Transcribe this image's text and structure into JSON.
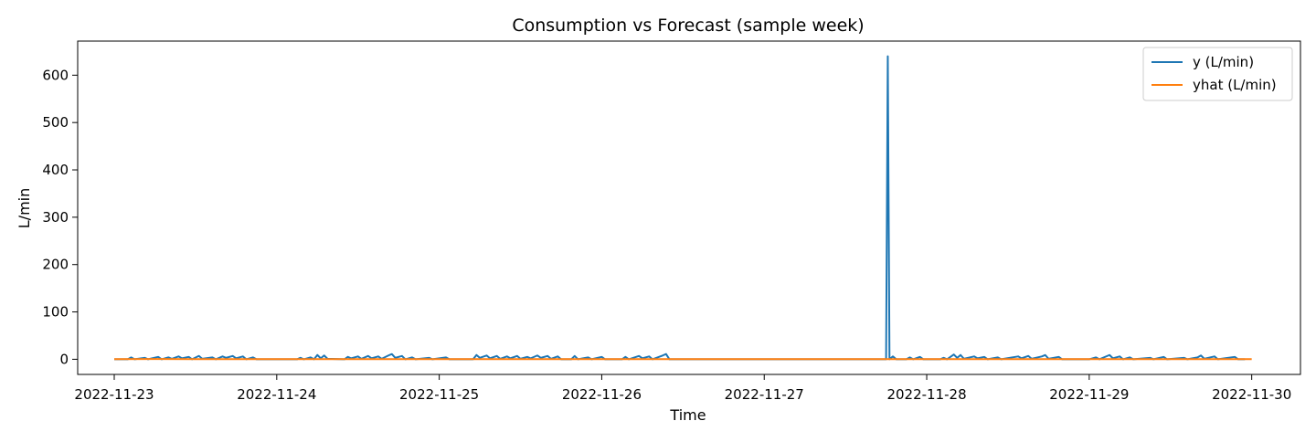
{
  "chart_data": {
    "type": "line",
    "title": "Consumption vs Forecast (sample week)",
    "xlabel": "Time",
    "ylabel": "L/min",
    "xlim": [
      "2022-11-22T18:36",
      "2022-11-30T07:12"
    ],
    "ylim": [
      -32,
      672
    ],
    "x_ticks": [
      "2022-11-23",
      "2022-11-24",
      "2022-11-25",
      "2022-11-26",
      "2022-11-27",
      "2022-11-28",
      "2022-11-29",
      "2022-11-30"
    ],
    "y_ticks": [
      0,
      100,
      200,
      300,
      400,
      500,
      600
    ],
    "legend_position": "top-right",
    "grid": false,
    "series": [
      {
        "name": "y (L/min)",
        "color": "#1f77b4",
        "points": [
          [
            "2022-11-23T00:00",
            0
          ],
          [
            "2022-11-23T02:00",
            0
          ],
          [
            "2022-11-23T02:30",
            4
          ],
          [
            "2022-11-23T03:00",
            0
          ],
          [
            "2022-11-23T04:30",
            3
          ],
          [
            "2022-11-23T05:00",
            0
          ],
          [
            "2022-11-23T06:30",
            5
          ],
          [
            "2022-11-23T07:00",
            0
          ],
          [
            "2022-11-23T08:00",
            4
          ],
          [
            "2022-11-23T08:30",
            1
          ],
          [
            "2022-11-23T09:30",
            6
          ],
          [
            "2022-11-23T10:00",
            2
          ],
          [
            "2022-11-23T11:00",
            5
          ],
          [
            "2022-11-23T11:30",
            0
          ],
          [
            "2022-11-23T12:30",
            7
          ],
          [
            "2022-11-23T13:00",
            1
          ],
          [
            "2022-11-23T14:30",
            4
          ],
          [
            "2022-11-23T15:00",
            0
          ],
          [
            "2022-11-23T16:00",
            6
          ],
          [
            "2022-11-23T16:30",
            3
          ],
          [
            "2022-11-23T17:30",
            7
          ],
          [
            "2022-11-23T18:00",
            2
          ],
          [
            "2022-11-23T19:00",
            6
          ],
          [
            "2022-11-23T19:30",
            0
          ],
          [
            "2022-11-23T20:30",
            4
          ],
          [
            "2022-11-23T21:00",
            0
          ],
          [
            "2022-11-23T23:00",
            0
          ],
          [
            "2022-11-24T00:00",
            0
          ],
          [
            "2022-11-24T03:00",
            0
          ],
          [
            "2022-11-24T03:30",
            3
          ],
          [
            "2022-11-24T04:00",
            0
          ],
          [
            "2022-11-24T05:00",
            4
          ],
          [
            "2022-11-24T05:30",
            0
          ],
          [
            "2022-11-24T06:00",
            9
          ],
          [
            "2022-11-24T06:30",
            2
          ],
          [
            "2022-11-24T07:00",
            8
          ],
          [
            "2022-11-24T07:30",
            1
          ],
          [
            "2022-11-24T10:00",
            0
          ],
          [
            "2022-11-24T10:30",
            5
          ],
          [
            "2022-11-24T11:00",
            2
          ],
          [
            "2022-11-24T12:00",
            6
          ],
          [
            "2022-11-24T12:30",
            1
          ],
          [
            "2022-11-24T13:30",
            7
          ],
          [
            "2022-11-24T14:00",
            2
          ],
          [
            "2022-11-24T15:00",
            6
          ],
          [
            "2022-11-24T15:30",
            1
          ],
          [
            "2022-11-24T16:30",
            8
          ],
          [
            "2022-11-24T17:00",
            11
          ],
          [
            "2022-11-24T17:30",
            3
          ],
          [
            "2022-11-24T18:30",
            7
          ],
          [
            "2022-11-24T19:00",
            0
          ],
          [
            "2022-11-24T20:00",
            4
          ],
          [
            "2022-11-24T20:30",
            0
          ],
          [
            "2022-11-24T22:30",
            3
          ],
          [
            "2022-11-24T23:00",
            0
          ],
          [
            "2022-11-25T01:00",
            4
          ],
          [
            "2022-11-25T01:30",
            0
          ],
          [
            "2022-11-25T05:00",
            0
          ],
          [
            "2022-11-25T05:30",
            9
          ],
          [
            "2022-11-25T06:00",
            3
          ],
          [
            "2022-11-25T07:00",
            8
          ],
          [
            "2022-11-25T07:30",
            2
          ],
          [
            "2022-11-25T08:30",
            7
          ],
          [
            "2022-11-25T09:00",
            1
          ],
          [
            "2022-11-25T10:00",
            6
          ],
          [
            "2022-11-25T10:30",
            2
          ],
          [
            "2022-11-25T11:30",
            7
          ],
          [
            "2022-11-25T12:00",
            1
          ],
          [
            "2022-11-25T13:00",
            5
          ],
          [
            "2022-11-25T13:30",
            2
          ],
          [
            "2022-11-25T14:30",
            8
          ],
          [
            "2022-11-25T15:00",
            3
          ],
          [
            "2022-11-25T16:00",
            7
          ],
          [
            "2022-11-25T16:30",
            1
          ],
          [
            "2022-11-25T17:30",
            6
          ],
          [
            "2022-11-25T18:00",
            0
          ],
          [
            "2022-11-25T19:30",
            0
          ],
          [
            "2022-11-25T20:00",
            7
          ],
          [
            "2022-11-25T20:30",
            0
          ],
          [
            "2022-11-25T22:00",
            4
          ],
          [
            "2022-11-25T22:30",
            0
          ],
          [
            "2022-11-26T00:00",
            5
          ],
          [
            "2022-11-26T00:30",
            0
          ],
          [
            "2022-11-26T03:00",
            0
          ],
          [
            "2022-11-26T03:30",
            5
          ],
          [
            "2022-11-26T04:00",
            0
          ],
          [
            "2022-11-26T05:30",
            7
          ],
          [
            "2022-11-26T06:00",
            2
          ],
          [
            "2022-11-26T07:00",
            6
          ],
          [
            "2022-11-26T07:30",
            0
          ],
          [
            "2022-11-26T09:00",
            8
          ],
          [
            "2022-11-26T09:30",
            11
          ],
          [
            "2022-11-26T10:00",
            0
          ],
          [
            "2022-11-27T18:00",
            0
          ],
          [
            "2022-11-27T18:15",
            640
          ],
          [
            "2022-11-27T18:30",
            0
          ],
          [
            "2022-11-27T19:00",
            6
          ],
          [
            "2022-11-27T19:30",
            0
          ],
          [
            "2022-11-27T21:00",
            0
          ],
          [
            "2022-11-27T21:30",
            4
          ],
          [
            "2022-11-27T22:00",
            0
          ],
          [
            "2022-11-27T23:00",
            5
          ],
          [
            "2022-11-27T23:30",
            0
          ],
          [
            "2022-11-28T02:00",
            0
          ],
          [
            "2022-11-28T02:30",
            3
          ],
          [
            "2022-11-28T03:00",
            0
          ],
          [
            "2022-11-28T04:00",
            10
          ],
          [
            "2022-11-28T04:30",
            3
          ],
          [
            "2022-11-28T05:00",
            9
          ],
          [
            "2022-11-28T05:30",
            1
          ],
          [
            "2022-11-28T07:00",
            6
          ],
          [
            "2022-11-28T07:30",
            2
          ],
          [
            "2022-11-28T08:30",
            5
          ],
          [
            "2022-11-28T09:00",
            0
          ],
          [
            "2022-11-28T10:30",
            4
          ],
          [
            "2022-11-28T11:00",
            0
          ],
          [
            "2022-11-28T13:30",
            6
          ],
          [
            "2022-11-28T14:00",
            2
          ],
          [
            "2022-11-28T15:00",
            7
          ],
          [
            "2022-11-28T15:30",
            1
          ],
          [
            "2022-11-28T17:00",
            6
          ],
          [
            "2022-11-28T17:30",
            9
          ],
          [
            "2022-11-28T18:00",
            1
          ],
          [
            "2022-11-28T19:30",
            5
          ],
          [
            "2022-11-28T20:00",
            0
          ],
          [
            "2022-11-29T00:00",
            0
          ],
          [
            "2022-11-29T01:00",
            4
          ],
          [
            "2022-11-29T01:30",
            0
          ],
          [
            "2022-11-29T03:00",
            9
          ],
          [
            "2022-11-29T03:30",
            2
          ],
          [
            "2022-11-29T04:30",
            6
          ],
          [
            "2022-11-29T05:00",
            0
          ],
          [
            "2022-11-29T06:00",
            4
          ],
          [
            "2022-11-29T06:30",
            0
          ],
          [
            "2022-11-29T09:00",
            3
          ],
          [
            "2022-11-29T09:30",
            0
          ],
          [
            "2022-11-29T11:00",
            5
          ],
          [
            "2022-11-29T11:30",
            0
          ],
          [
            "2022-11-29T14:00",
            3
          ],
          [
            "2022-11-29T14:30",
            0
          ],
          [
            "2022-11-29T16:00",
            4
          ],
          [
            "2022-11-29T16:30",
            8
          ],
          [
            "2022-11-29T17:00",
            1
          ],
          [
            "2022-11-29T18:30",
            6
          ],
          [
            "2022-11-29T19:00",
            0
          ],
          [
            "2022-11-29T21:30",
            5
          ],
          [
            "2022-11-29T22:00",
            0
          ],
          [
            "2022-11-29T23:00",
            0
          ]
        ]
      },
      {
        "name": "yhat (L/min)",
        "color": "#ff7f0e",
        "points": [
          [
            "2022-11-23T00:00",
            0.3
          ],
          [
            "2022-11-23T06:00",
            0.5
          ],
          [
            "2022-11-23T12:00",
            0.2
          ],
          [
            "2022-11-24T00:00",
            0.4
          ],
          [
            "2022-11-24T12:00",
            0.3
          ],
          [
            "2022-11-25T00:00",
            0.3
          ],
          [
            "2022-11-25T12:00",
            0.4
          ],
          [
            "2022-11-26T00:00",
            0.3
          ],
          [
            "2022-11-26T12:00",
            0.2
          ],
          [
            "2022-11-27T00:00",
            0.2
          ],
          [
            "2022-11-27T12:00",
            0.2
          ],
          [
            "2022-11-28T00:00",
            0.3
          ],
          [
            "2022-11-28T12:00",
            0.4
          ],
          [
            "2022-11-29T00:00",
            0.3
          ],
          [
            "2022-11-29T12:00",
            0.3
          ],
          [
            "2022-11-30T00:00",
            0.2
          ]
        ]
      }
    ]
  }
}
